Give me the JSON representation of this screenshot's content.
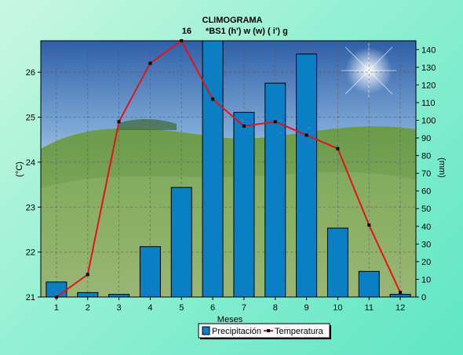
{
  "chart_data": {
    "type": "bar",
    "title": "CLIMOGRAMA",
    "subtitle_num": "16",
    "subtitle_code": "*BS1 (h') w (w) ( i') g",
    "xlabel": "Meses",
    "ylabel_left": "(°C)",
    "ylabel_right": "(mm)",
    "categories": [
      "1",
      "2",
      "3",
      "4",
      "5",
      "6",
      "7",
      "8",
      "9",
      "10",
      "11",
      "12"
    ],
    "ylim_left": [
      21,
      26.7
    ],
    "ylim_right": [
      0,
      145
    ],
    "left_ticks": [
      "21",
      "22",
      "23",
      "24",
      "25",
      "26"
    ],
    "right_ticks": [
      "0",
      "10",
      "20",
      "30",
      "40",
      "50",
      "60",
      "70",
      "80",
      "90",
      "100",
      "110",
      "120",
      "130",
      "140"
    ],
    "grid": true,
    "legend_position": "bottom-center",
    "series": [
      {
        "name": "Precipitación",
        "kind": "bar",
        "axis": "right",
        "color": "#0A7FC4",
        "values": [
          8.5,
          2.5,
          1.5,
          28.5,
          62,
          147,
          104.5,
          121,
          137.5,
          39,
          14.5,
          1.5
        ]
      },
      {
        "name": "Temperatura",
        "kind": "line",
        "axis": "left",
        "color": "#E8101A",
        "values": [
          21.0,
          21.5,
          24.9,
          26.2,
          26.7,
          25.4,
          24.8,
          24.9,
          24.6,
          24.3,
          22.6,
          21.1
        ]
      }
    ]
  }
}
